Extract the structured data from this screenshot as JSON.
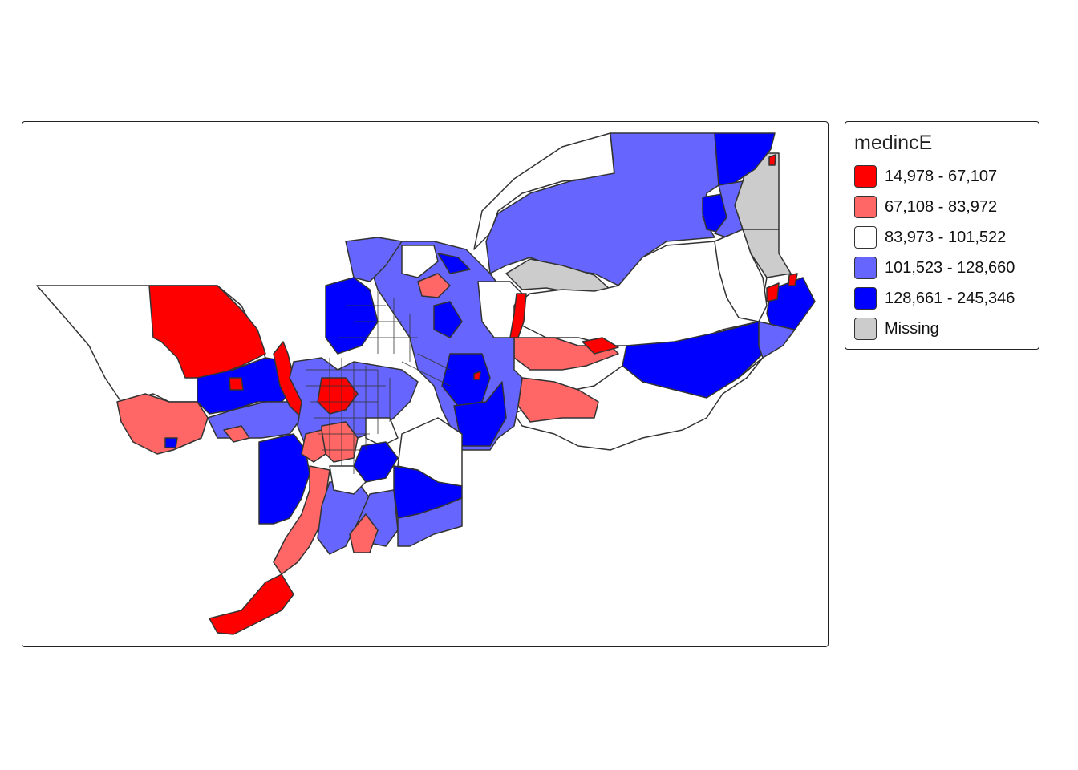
{
  "legend": {
    "title": "medincE",
    "items": [
      {
        "label": "14,978 - 67,107",
        "color": "#ff0000"
      },
      {
        "label": "67,108 - 83,972",
        "color": "#ff6666"
      },
      {
        "label": "83,973 - 101,522",
        "color": "#ffffff"
      },
      {
        "label": "101,523 - 128,660",
        "color": "#6666ff"
      },
      {
        "label": "128,661 - 245,346",
        "color": "#0000ff"
      },
      {
        "label": "Missing",
        "color": "#cccccc"
      }
    ]
  },
  "colors": {
    "border": "#333333",
    "frame": "#222222"
  }
}
